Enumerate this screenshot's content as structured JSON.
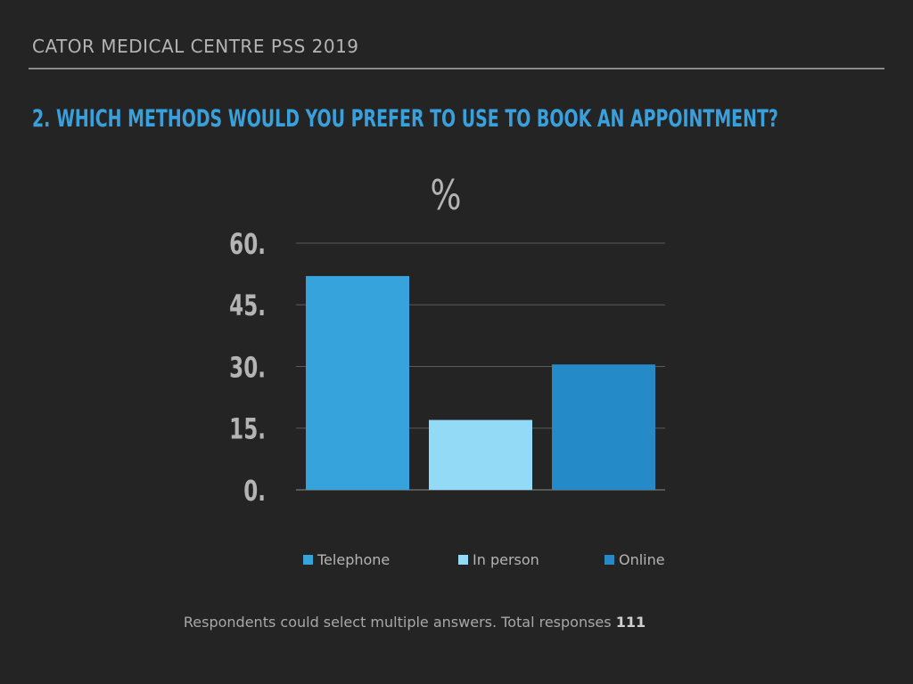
{
  "header": {
    "title": "CATOR MEDICAL CENTRE PSS 2019"
  },
  "question": "2. WHICH METHODS WOULD YOU PREFER TO USE TO BOOK AN APPOINTMENT?",
  "footnote": {
    "text": "Respondents could select multiple answers. Total responses",
    "total": "111"
  },
  "colors": {
    "background": "#242424",
    "accent": "#3aa0dc",
    "telephone": "#36a3dc",
    "in_person": "#93daf7",
    "online": "#248ac8"
  },
  "chart_data": {
    "type": "bar",
    "title": "%",
    "categories": [
      "Telephone",
      "In person",
      "Online"
    ],
    "values": [
      52,
      17,
      30.5
    ],
    "colors": [
      "#36a3dc",
      "#93daf7",
      "#248ac8"
    ],
    "ylim": [
      0,
      60
    ],
    "yticks": [
      0,
      15,
      30,
      45,
      60
    ],
    "ytick_labels": [
      "0.",
      "15.",
      "30.",
      "45.",
      "60."
    ],
    "grid": true,
    "legend": "bottom",
    "xlabel": "",
    "ylabel": ""
  }
}
